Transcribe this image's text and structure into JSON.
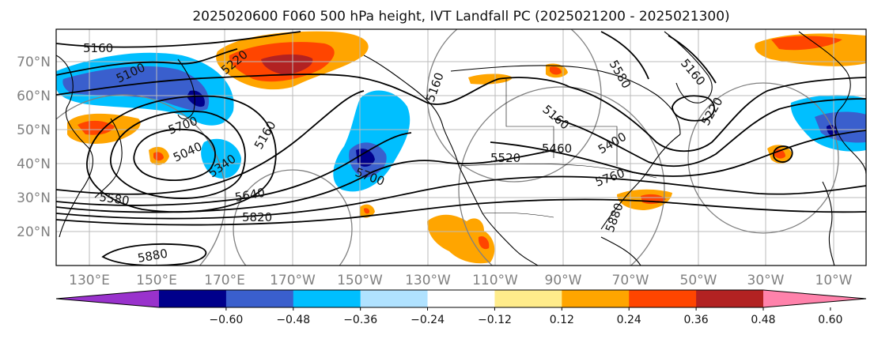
{
  "title": "2025020600 F060 500 hPa height, IVT Landfall PC (2025021200 - 2025021300)",
  "map": {
    "longitude_labels": [
      "130°E",
      "150°E",
      "170°E",
      "170°W",
      "150°W",
      "130°W",
      "110°W",
      "90°W",
      "70°W",
      "50°W",
      "30°W",
      "10°W"
    ],
    "latitude_labels": [
      "70°N",
      "60°N",
      "50°N",
      "40°N",
      "30°N",
      "20°N"
    ],
    "lat_range": [
      10,
      80
    ],
    "gridlines": true
  },
  "colorbar": {
    "tick_labels": [
      "−0.60",
      "−0.48",
      "−0.36",
      "−0.24",
      "−0.12",
      "0.12",
      "0.24",
      "0.36",
      "0.48",
      "0.60"
    ],
    "colors": [
      "#9932cc",
      "#00008b",
      "#3a5fcd",
      "#00bfff",
      "#b0e2ff",
      "#ffffff",
      "#ffec8b",
      "#ffa500",
      "#ff4500",
      "#b22222",
      "#ff82ab"
    ],
    "extend": "both"
  },
  "contour_labels": [
    "5160",
    "5100",
    "5220",
    "5700",
    "5040",
    "5340",
    "5160",
    "5580",
    "5640",
    "5820",
    "5880",
    "5700",
    "5160",
    "5520",
    "5460",
    "5400",
    "5160",
    "5160",
    "5220",
    "5580",
    "5760",
    "5880"
  ],
  "chart_data": {
    "type": "heatmap",
    "title": "2025020600 F060 500 hPa height, IVT Landfall PC (2025021200 - 2025021300)",
    "fields": [
      "500 hPa geopotential height (contours)",
      "IVT landfall PC (shaded)"
    ],
    "contour_levels": [
      5040,
      5100,
      5160,
      5220,
      5340,
      5400,
      5460,
      5520,
      5580,
      5640,
      5700,
      5760,
      5820,
      5880
    ],
    "shading_levels": [
      -0.6,
      -0.48,
      -0.36,
      -0.24,
      -0.12,
      0.12,
      0.24,
      0.36,
      0.48,
      0.6
    ],
    "x_range": [
      "120°E",
      "0°"
    ],
    "y_range": [
      "10°N",
      "80°N"
    ],
    "shaded_regions": [
      {
        "region": "Kamchatka / northwest Pacific 55–65°N",
        "sign": "negative",
        "peak": -0.48
      },
      {
        "region": "Bering Sea 65–75°N",
        "sign": "positive",
        "peak": 0.48
      },
      {
        "region": "Gulf of Alaska / Pacific 35–55°N",
        "sign": "negative",
        "peak": -0.6
      },
      {
        "region": "Japan / East Asia 35–50°N",
        "sign": "positive",
        "peak": 0.36
      },
      {
        "region": "Subtropical eastern Pacific / Mexico 15–25°N",
        "sign": "positive",
        "peak": 0.36
      },
      {
        "region": "Gulf of Mexico / western Atlantic 28–33°N",
        "sign": "positive",
        "peak": 0.36
      },
      {
        "region": "North Atlantic near Greenland / Europe 40–75°N",
        "sign": "mixed",
        "peak": 0.48
      }
    ]
  }
}
